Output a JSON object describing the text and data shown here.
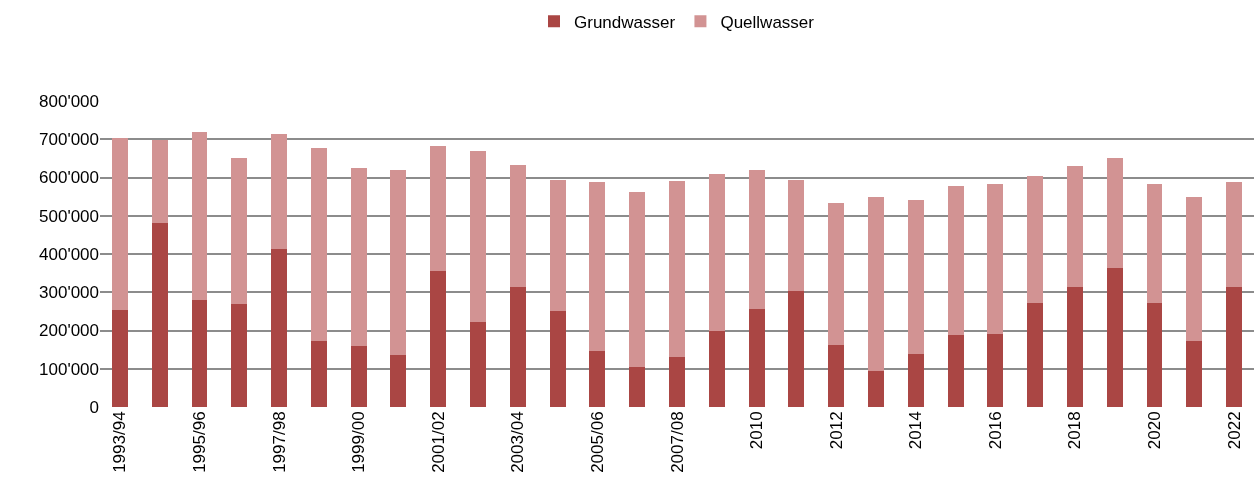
{
  "chart_data": {
    "type": "bar",
    "stacked": true,
    "categories": [
      "1993/94",
      null,
      "1995/96",
      null,
      "1997/98",
      null,
      "1999/00",
      null,
      "2001/02",
      null,
      "2003/04",
      null,
      "2005/06",
      null,
      "2007/08",
      null,
      "2010",
      null,
      "2012",
      null,
      "2014",
      null,
      "2016",
      null,
      "2018",
      null,
      "2020",
      null,
      "2022"
    ],
    "series": [
      {
        "name": "Grundwasser",
        "color": "#aa4644",
        "values": [
          254000,
          480000,
          280000,
          268000,
          413000,
          173000,
          159000,
          135000,
          356000,
          221000,
          313000,
          251000,
          147000,
          105000,
          131000,
          199000,
          257000,
          303000,
          163000,
          95000,
          138000,
          188000,
          190000,
          271000,
          314000,
          364000,
          271000,
          173000,
          314000
        ]
      },
      {
        "name": "Quellwasser",
        "color": "#d29393",
        "values": [
          450000,
          219000,
          440000,
          382000,
          301000,
          505000,
          467000,
          484000,
          326000,
          449000,
          321000,
          342000,
          442000,
          456000,
          461000,
          410000,
          362000,
          291000,
          371000,
          455000,
          403000,
          391000,
          392000,
          333000,
          316000,
          286000,
          311000,
          377000,
          275000
        ]
      }
    ],
    "ylim": [
      0,
      800000
    ],
    "yticks": [
      {
        "value": 0,
        "label": "0"
      },
      {
        "value": 100000,
        "label": "100'000"
      },
      {
        "value": 200000,
        "label": "200'000"
      },
      {
        "value": 300000,
        "label": "300'000"
      },
      {
        "value": 400000,
        "label": "400'000"
      },
      {
        "value": 500000,
        "label": "500'000"
      },
      {
        "value": 600000,
        "label": "600'000"
      },
      {
        "value": 700000,
        "label": "700'000"
      },
      {
        "value": 800000,
        "label": "800'000"
      }
    ],
    "grid": "y",
    "legend": "top"
  }
}
